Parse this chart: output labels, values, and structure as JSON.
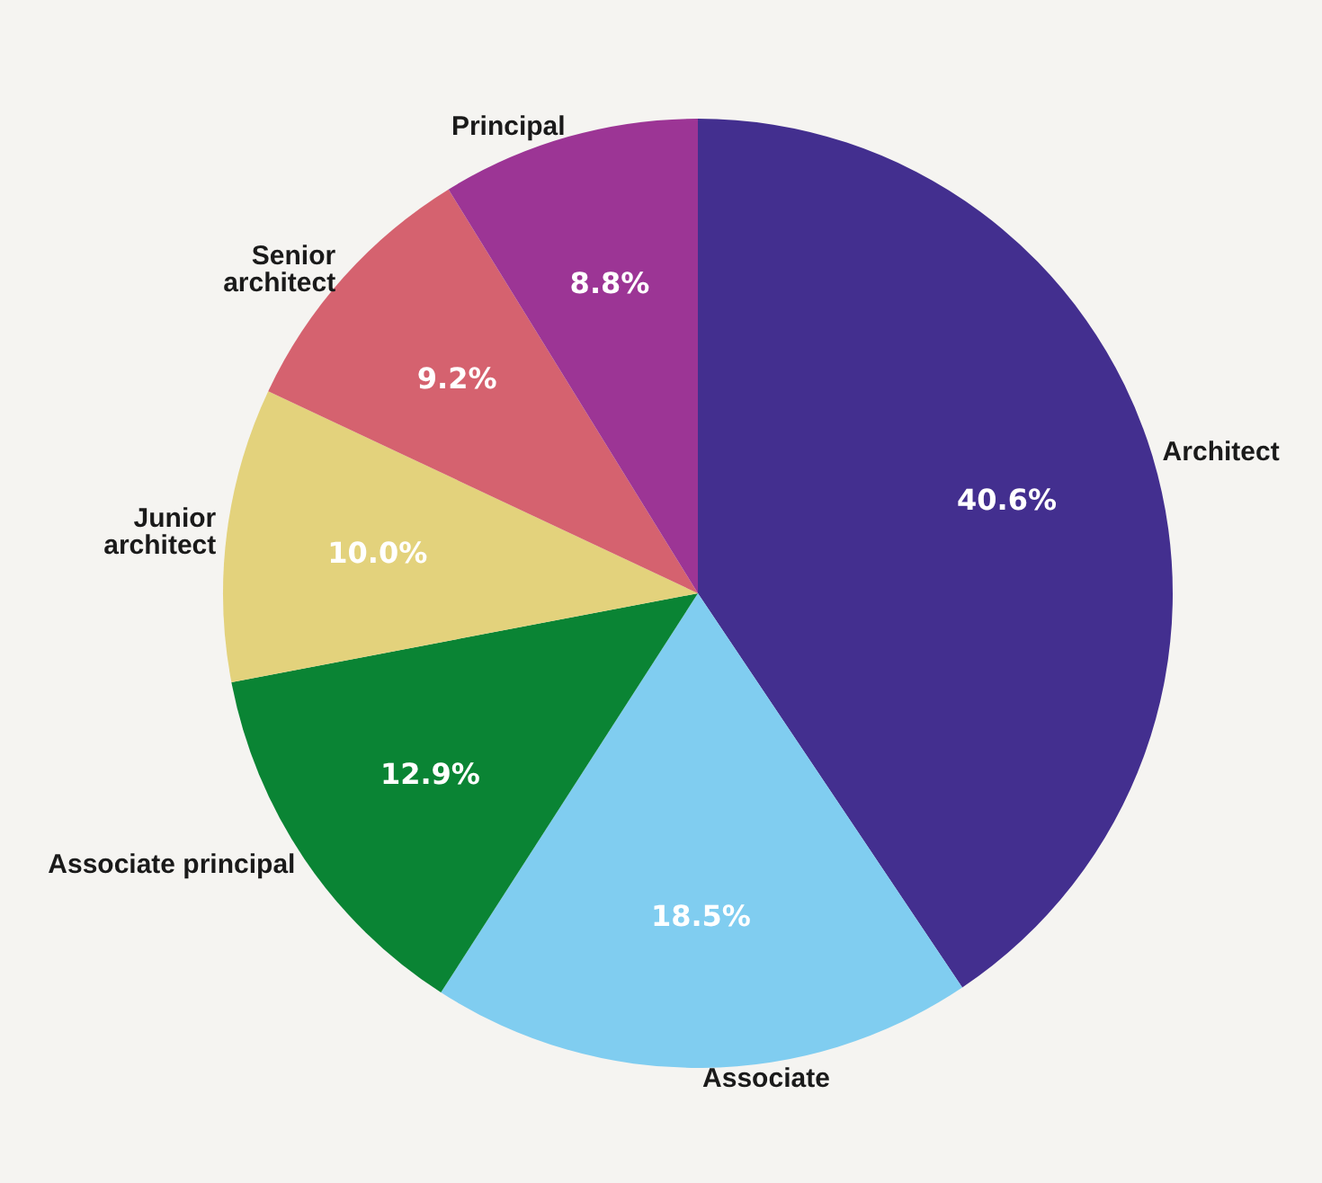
{
  "chart_data": {
    "type": "pie",
    "categories": [
      "Architect",
      "Associate",
      "Associate principal",
      "Junior architect",
      "Senior architect",
      "Principal"
    ],
    "values": [
      40.6,
      18.5,
      12.9,
      10.0,
      9.2,
      8.8
    ],
    "value_labels": [
      "40.6%",
      "18.5%",
      "12.9%",
      "10.0%",
      "9.2%",
      "8.8%"
    ],
    "colors": [
      "#432f8f",
      "#80cdf0",
      "#0a8434",
      "#e3d27c",
      "#d5626f",
      "#9c3595"
    ],
    "legend": false
  }
}
